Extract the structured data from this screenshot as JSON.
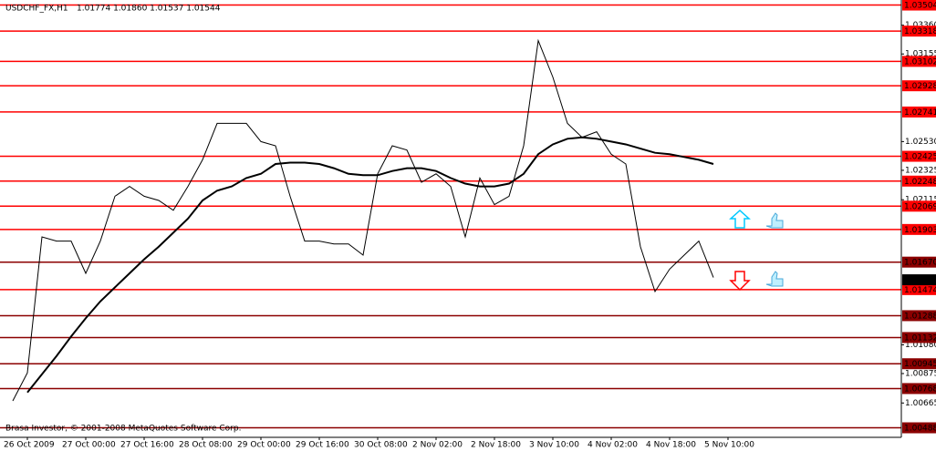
{
  "chart_data": {
    "type": "line",
    "title": "USDCHF_FX,H1",
    "quote": "1.01774 1.01860 1.01537 1.01544",
    "footer": "Brasa Investor, © 2001-2008 MetaQuotes Software Corp.",
    "categories": [
      null,
      "26 Oct 2009",
      null,
      null,
      null,
      "27 Oct 00:00",
      null,
      null,
      null,
      "27 Oct 16:00",
      null,
      null,
      null,
      "28 Oct 08:00",
      null,
      null,
      null,
      "29 Oct 00:00",
      null,
      null,
      null,
      "29 Oct 16:00",
      null,
      null,
      null,
      "30 Oct 08:00",
      null,
      null,
      null,
      "2 Nov 02:00",
      null,
      null,
      null,
      "2 Nov 18:00",
      null,
      null,
      null,
      "3 Nov 10:00",
      null,
      null,
      null,
      "4 Nov 02:00",
      null,
      null,
      null,
      "4 Nov 18:00",
      null,
      null,
      null,
      "5 Nov 10:00"
    ],
    "series": [
      {
        "color": "#000000",
        "values": [
          1.0068,
          1.0088,
          1.0185,
          1.0182,
          1.0182,
          1.0159,
          1.0182,
          1.0214,
          1.0221,
          1.0214,
          1.0211,
          1.0204,
          1.0221,
          1.024,
          1.0266,
          1.0266,
          1.0266,
          1.0253,
          1.025,
          1.0214,
          1.0182,
          1.0182,
          1.018,
          1.018,
          1.0172,
          1.023,
          1.025,
          1.0247,
          1.0224,
          1.023,
          1.0221,
          1.0185,
          1.0227,
          1.0208,
          1.0214,
          1.025,
          1.0325,
          1.0299,
          1.0266,
          1.0256,
          1.026,
          1.0244,
          1.0237,
          1.0178,
          1.0146,
          1.0162,
          1.0172,
          1.0182,
          1.0156,
          null
        ]
      },
      {
        "color": "#000000",
        "values": [
          null,
          1.0074,
          1.0087,
          1.01,
          1.0114,
          1.0127,
          1.0139,
          1.0149,
          1.0159,
          1.0169,
          1.0178,
          1.0188,
          1.0198,
          1.0211,
          1.0218,
          1.0221,
          1.0227,
          1.023,
          1.0237,
          1.0238,
          1.0238,
          1.0237,
          1.0234,
          1.023,
          1.0229,
          1.0229,
          1.0232,
          1.0234,
          1.0234,
          1.0232,
          1.0227,
          1.0223,
          1.0221,
          1.0221,
          1.0223,
          1.023,
          1.0244,
          1.0251,
          1.0255,
          1.0256,
          1.0255,
          1.0253,
          1.0251,
          1.0248,
          1.0245,
          1.0244,
          1.0242,
          1.024,
          1.0237,
          null
        ]
      }
    ],
    "ylim": [
      1.0042,
      1.0354
    ],
    "yticks": [
      {
        "value": 1.0336,
        "label": "1.03360"
      },
      1.03155,
      {
        "value": 1.0253,
        "label": "1.02530"
      },
      1.02325,
      1.02115,
      {
        "value": 1.0108,
        "label": "1.01080"
      },
      1.00875,
      1.00665
    ],
    "levels": [
      {
        "value": 1.03504,
        "color": "#ff0000"
      },
      {
        "value": 1.03318,
        "color": "#ff0000"
      },
      {
        "value": 1.03102,
        "color": "#ff0000"
      },
      {
        "value": 1.02928,
        "color": "#ff0000"
      },
      {
        "value": 1.02741,
        "color": "#ff0000"
      },
      {
        "value": 1.02425,
        "color": "#ff0000"
      },
      {
        "value": 1.02248,
        "color": "#ff0000"
      },
      {
        "value": 1.02069,
        "color": "#ff0000"
      },
      {
        "value": 1.01903,
        "color": "#ff0000"
      },
      {
        "value": 1.0167,
        "label": "1.01670",
        "color": "#8b0000"
      },
      {
        "value": 1.01474,
        "color": "#ff0000"
      },
      {
        "value": 1.01288,
        "color": "#8b0000"
      },
      {
        "value": 1.01132,
        "color": "#8b0000"
      },
      {
        "value": 1.00945,
        "color": "#8b0000"
      },
      {
        "value": 1.00768,
        "color": "#8b0000"
      },
      {
        "value": 1.00488,
        "color": "#8b0000"
      }
    ],
    "current_price": 1.01544
  }
}
